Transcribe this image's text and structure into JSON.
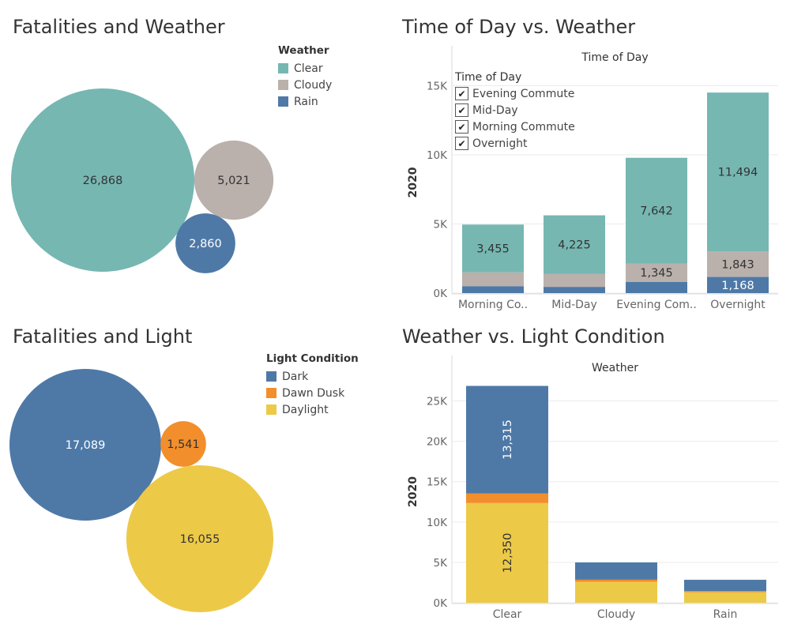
{
  "colors": {
    "clear": "#76b7b2",
    "cloudy": "#bab0ac",
    "rain": "#4e79a7",
    "dark": "#4e79a7",
    "dawn_dusk": "#f28e2b",
    "daylight": "#edc948",
    "grid": "#ebebeb",
    "axis_text": "#666666"
  },
  "panels": {
    "fatalities_weather": {
      "title": "Fatalities and Weather"
    },
    "time_of_day": {
      "title": "Time of Day vs. Weather"
    },
    "fatalities_light": {
      "title": "Fatalities and Light"
    },
    "weather_light": {
      "title": "Weather vs. Light Condition"
    }
  },
  "legends": {
    "weather": {
      "title": "Weather",
      "items": [
        {
          "label": "Clear",
          "color": "#76b7b2"
        },
        {
          "label": "Cloudy",
          "color": "#bab0ac"
        },
        {
          "label": "Rain",
          "color": "#4e79a7"
        }
      ]
    },
    "light": {
      "title": "Light Condition",
      "items": [
        {
          "label": "Dark",
          "color": "#4e79a7"
        },
        {
          "label": "Dawn Dusk",
          "color": "#f28e2b"
        },
        {
          "label": "Daylight",
          "color": "#edc948"
        }
      ]
    }
  },
  "filter": {
    "title": "Time of Day",
    "items": [
      {
        "label": "Evening Commute",
        "checked": true,
        "mark": "✔"
      },
      {
        "label": "Mid-Day",
        "checked": true,
        "mark": "✔"
      },
      {
        "label": "Morning Commute",
        "checked": true,
        "mark": "✔"
      },
      {
        "label": "Overnight",
        "checked": true,
        "mark": "✔"
      }
    ]
  },
  "chart_data": [
    {
      "id": "weather_bubbles",
      "type": "bubble",
      "title": "Fatalities and Weather",
      "legend_title": "Weather",
      "items": [
        {
          "label": "Clear",
          "value": 26868,
          "display": "26,868",
          "color": "#76b7b2"
        },
        {
          "label": "Cloudy",
          "value": 5021,
          "display": "5,021",
          "color": "#bab0ac"
        },
        {
          "label": "Rain",
          "value": 2860,
          "display": "2,860",
          "color": "#4e79a7"
        }
      ]
    },
    {
      "id": "time_of_day",
      "type": "bar",
      "stacked": true,
      "title": "Time of Day vs. Weather",
      "header": "Time of Day",
      "ylabel": "2020",
      "ylim": [
        0,
        16000
      ],
      "yticks": [
        0,
        5000,
        10000,
        15000
      ],
      "ytick_labels": [
        "0K",
        "5K",
        "10K",
        "15K"
      ],
      "categories": [
        "Morning Co..",
        "Mid-Day",
        "Evening Com..",
        "Overnight"
      ],
      "series": [
        {
          "name": "Rain",
          "color": "#4e79a7",
          "values": [
            500,
            450,
            800,
            1168
          ],
          "labels": [
            "",
            "",
            "",
            "1,168"
          ]
        },
        {
          "name": "Cloudy",
          "color": "#bab0ac",
          "values": [
            1000,
            950,
            1345,
            1843
          ],
          "labels": [
            "",
            "",
            "1,345",
            "1,843"
          ]
        },
        {
          "name": "Clear",
          "color": "#76b7b2",
          "values": [
            3455,
            4225,
            7642,
            11494
          ],
          "labels": [
            "3,455",
            "4,225",
            "7,642",
            "11,494"
          ]
        }
      ]
    },
    {
      "id": "light_bubbles",
      "type": "bubble",
      "title": "Fatalities and Light",
      "legend_title": "Light Condition",
      "items": [
        {
          "label": "Dark",
          "value": 17089,
          "display": "17,089",
          "color": "#4e79a7"
        },
        {
          "label": "Dawn Dusk",
          "value": 1541,
          "display": "1,541",
          "color": "#f28e2b"
        },
        {
          "label": "Daylight",
          "value": 16055,
          "display": "16,055",
          "color": "#edc948"
        }
      ]
    },
    {
      "id": "weather_light",
      "type": "bar",
      "stacked": true,
      "title": "Weather vs. Light Condition",
      "header": "Weather",
      "ylabel": "2020",
      "ylim": [
        0,
        27500
      ],
      "yticks": [
        0,
        5000,
        10000,
        15000,
        20000,
        25000
      ],
      "ytick_labels": [
        "0K",
        "5K",
        "10K",
        "15K",
        "20K",
        "25K"
      ],
      "categories": [
        "Clear",
        "Cloudy",
        "Rain"
      ],
      "series": [
        {
          "name": "Daylight",
          "color": "#edc948",
          "values": [
            12350,
            2600,
            1300
          ],
          "labels": [
            "12,350",
            "",
            ""
          ]
        },
        {
          "name": "Dawn Dusk",
          "color": "#f28e2b",
          "values": [
            1200,
            250,
            150
          ],
          "labels": [
            "",
            "",
            ""
          ]
        },
        {
          "name": "Dark",
          "color": "#4e79a7",
          "values": [
            13315,
            2150,
            1400
          ],
          "labels": [
            "13,315",
            "",
            ""
          ]
        }
      ]
    }
  ]
}
